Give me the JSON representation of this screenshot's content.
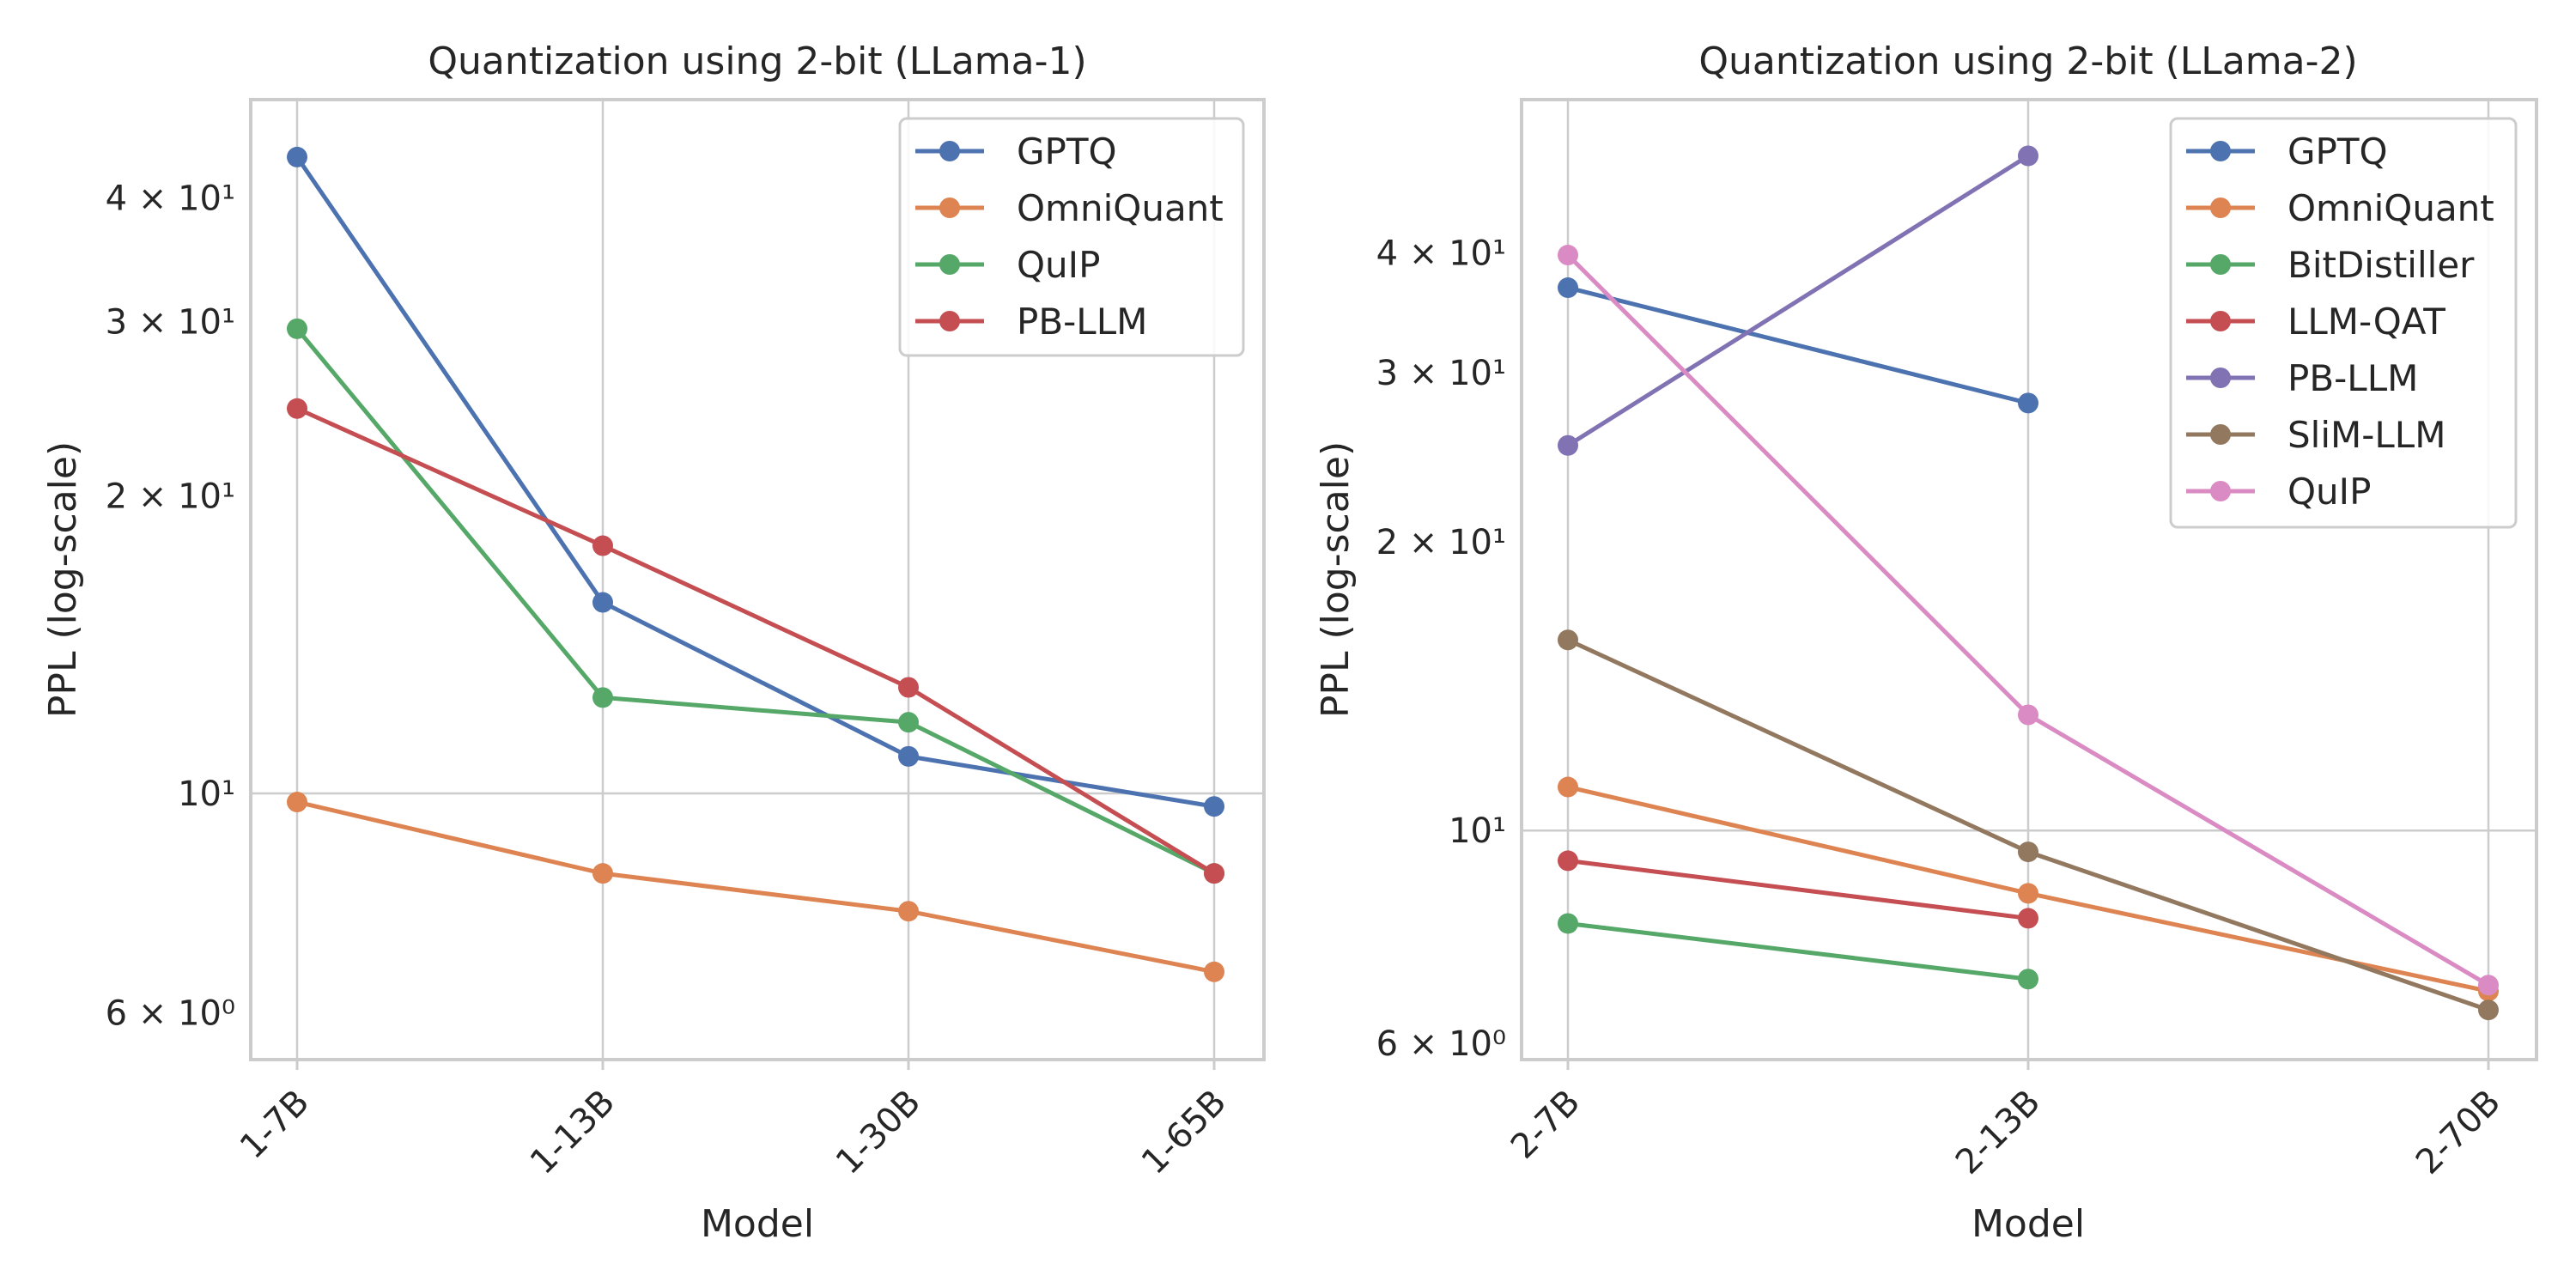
{
  "chart_data": [
    {
      "type": "line",
      "title": "Quantization using 2-bit (LLama-1)",
      "xlabel": "Model",
      "ylabel": "PPL (log-scale)",
      "yscale": "log",
      "ylim": [
        5.38,
        50.3
      ],
      "categories": [
        "1-7B",
        "1-13B",
        "1-30B",
        "1-65B"
      ],
      "yticks": [
        {
          "value": 6,
          "label": "6 × 10⁰",
          "major": false
        },
        {
          "value": 10,
          "label": "10¹",
          "major": true
        },
        {
          "value": 20,
          "label": "2 × 10¹",
          "major": false
        },
        {
          "value": 30,
          "label": "3 × 10¹",
          "major": false
        },
        {
          "value": 40,
          "label": "4 × 10¹",
          "major": false
        }
      ],
      "legend_position": "top-right",
      "series": [
        {
          "name": "GPTQ",
          "color": "#4c72b0",
          "values": [
            44.0,
            15.6,
            10.9,
            9.7
          ]
        },
        {
          "name": "OmniQuant",
          "color": "#dd8452",
          "values": [
            9.8,
            8.3,
            7.6,
            6.6
          ]
        },
        {
          "name": "QuIP",
          "color": "#55a868",
          "values": [
            29.5,
            12.5,
            11.8,
            8.3
          ]
        },
        {
          "name": "PB-LLM",
          "color": "#c44e52",
          "values": [
            24.5,
            17.8,
            12.8,
            8.3
          ]
        }
      ]
    },
    {
      "type": "line",
      "title": "Quantization using 2-bit (LLama-2)",
      "xlabel": "Model",
      "ylabel": "PPL (log-scale)",
      "yscale": "log",
      "ylim": [
        5.77,
        57.8
      ],
      "categories": [
        "2-7B",
        "2-13B",
        "2-70B"
      ],
      "yticks": [
        {
          "value": 6,
          "label": "6 × 10⁰",
          "major": false
        },
        {
          "value": 10,
          "label": "10¹",
          "major": true
        },
        {
          "value": 20,
          "label": "2 × 10¹",
          "major": false
        },
        {
          "value": 30,
          "label": "3 × 10¹",
          "major": false
        },
        {
          "value": 40,
          "label": "4 × 10¹",
          "major": false
        }
      ],
      "legend_position": "top-right",
      "series": [
        {
          "name": "GPTQ",
          "color": "#4c72b0",
          "values": [
            36.8,
            27.9,
            null
          ]
        },
        {
          "name": "OmniQuant",
          "color": "#dd8452",
          "values": [
            11.1,
            8.6,
            6.8
          ]
        },
        {
          "name": "BitDistiller",
          "color": "#55a868",
          "values": [
            8.0,
            7.0,
            null
          ]
        },
        {
          "name": "LLM-QAT",
          "color": "#c44e52",
          "values": [
            9.3,
            8.1,
            null
          ]
        },
        {
          "name": "PB-LLM",
          "color": "#8172b3",
          "values": [
            25.2,
            50.5,
            null
          ]
        },
        {
          "name": "SliM-LLM",
          "color": "#937860",
          "values": [
            15.8,
            9.5,
            6.5
          ]
        },
        {
          "name": "QuIP",
          "color": "#da8bc3",
          "values": [
            39.8,
            13.2,
            6.9
          ]
        }
      ]
    }
  ]
}
